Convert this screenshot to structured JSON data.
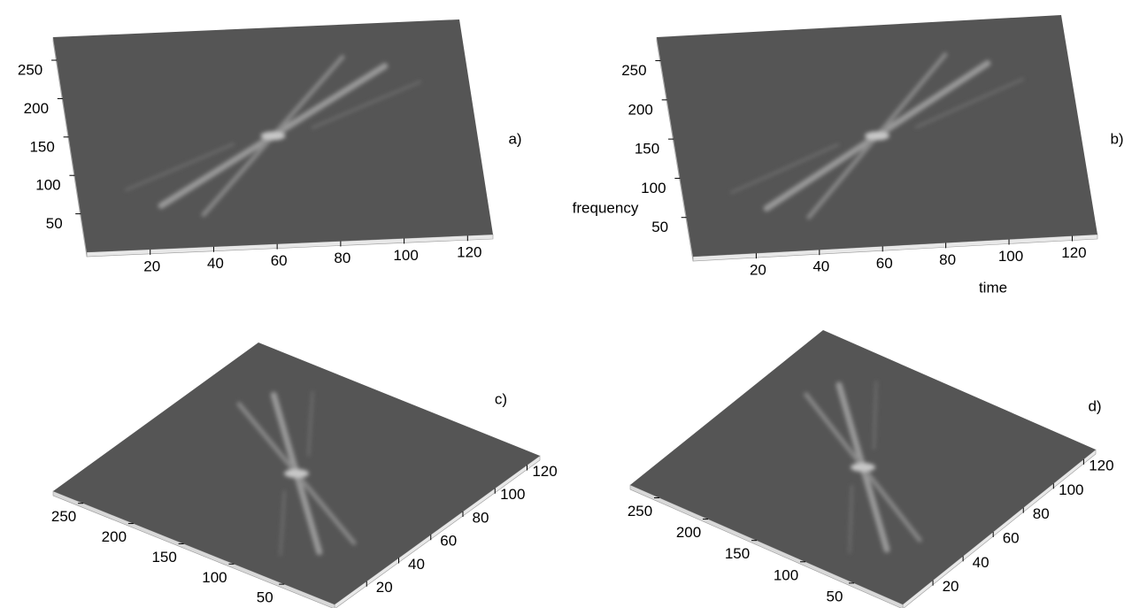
{
  "chart_data": [
    {
      "type": "surface",
      "panel_label": "a)",
      "xlim": [
        0,
        128
      ],
      "ylim": [
        0,
        280
      ],
      "xticks": [
        20,
        40,
        60,
        80,
        100,
        120
      ],
      "yticks": [
        50,
        100,
        150,
        200,
        250
      ]
    },
    {
      "type": "surface",
      "panel_label": "b)",
      "xlabel": "time",
      "ylabel": "frequency",
      "xlim": [
        0,
        128
      ],
      "ylim": [
        0,
        280
      ],
      "xticks": [
        20,
        40,
        60,
        80,
        100,
        120
      ],
      "yticks": [
        50,
        100,
        150,
        200,
        250
      ]
    },
    {
      "type": "surface",
      "panel_label": "c)",
      "xlim": [
        0,
        128
      ],
      "ylim": [
        0,
        280
      ],
      "xticks": [
        20,
        40,
        60,
        80,
        100,
        120
      ],
      "yticks": [
        50,
        100,
        150,
        200,
        250
      ]
    },
    {
      "type": "surface",
      "panel_label": "d)",
      "xlim": [
        0,
        128
      ],
      "ylim": [
        0,
        280
      ],
      "xticks": [
        20,
        40,
        60,
        80,
        100,
        120
      ],
      "yticks": [
        50,
        100,
        150,
        200,
        250
      ]
    }
  ]
}
